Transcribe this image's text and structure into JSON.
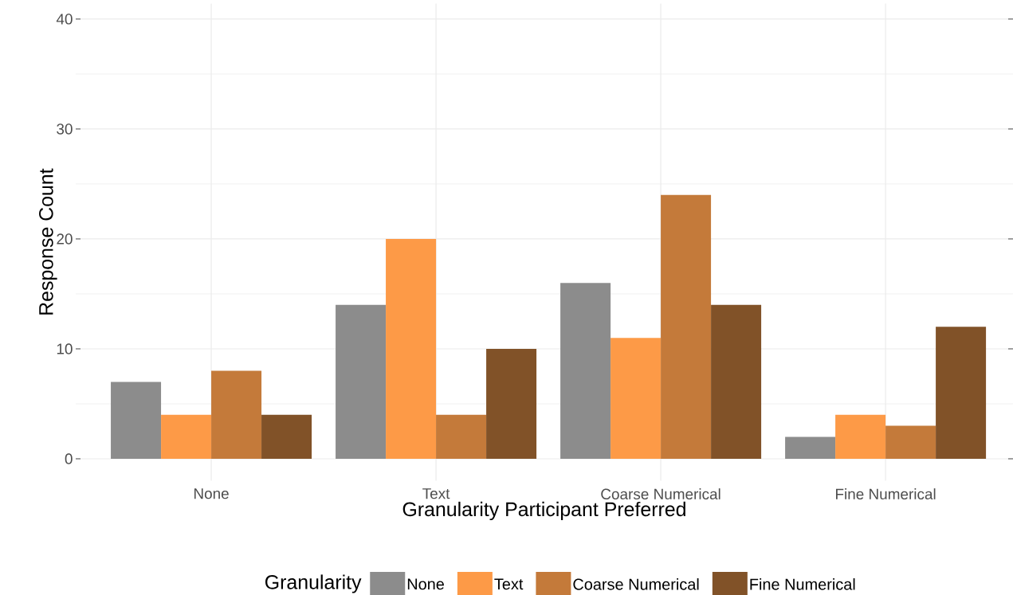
{
  "chart_data": {
    "type": "bar",
    "xlabel": "Granularity Participant Preferred",
    "ylabel": "Response Count",
    "legend_title": "Granularity",
    "categories": [
      "None",
      "Text",
      "Coarse Numerical",
      "Fine Numerical"
    ],
    "series": [
      {
        "name": "None",
        "color": "#8c8c8c",
        "values": [
          7,
          14,
          16,
          2
        ]
      },
      {
        "name": "Text",
        "color": "#fd9a47",
        "values": [
          4,
          20,
          11,
          4
        ]
      },
      {
        "name": "Coarse Numerical",
        "color": "#c47a3a",
        "values": [
          8,
          4,
          24,
          3
        ]
      },
      {
        "name": "Fine Numerical",
        "color": "#815228",
        "values": [
          4,
          10,
          14,
          12
        ]
      }
    ],
    "ylim": [
      -2,
      41.4
    ],
    "yticks": [
      0,
      10,
      20,
      30,
      40
    ],
    "grid": true,
    "legend": "bottom"
  }
}
